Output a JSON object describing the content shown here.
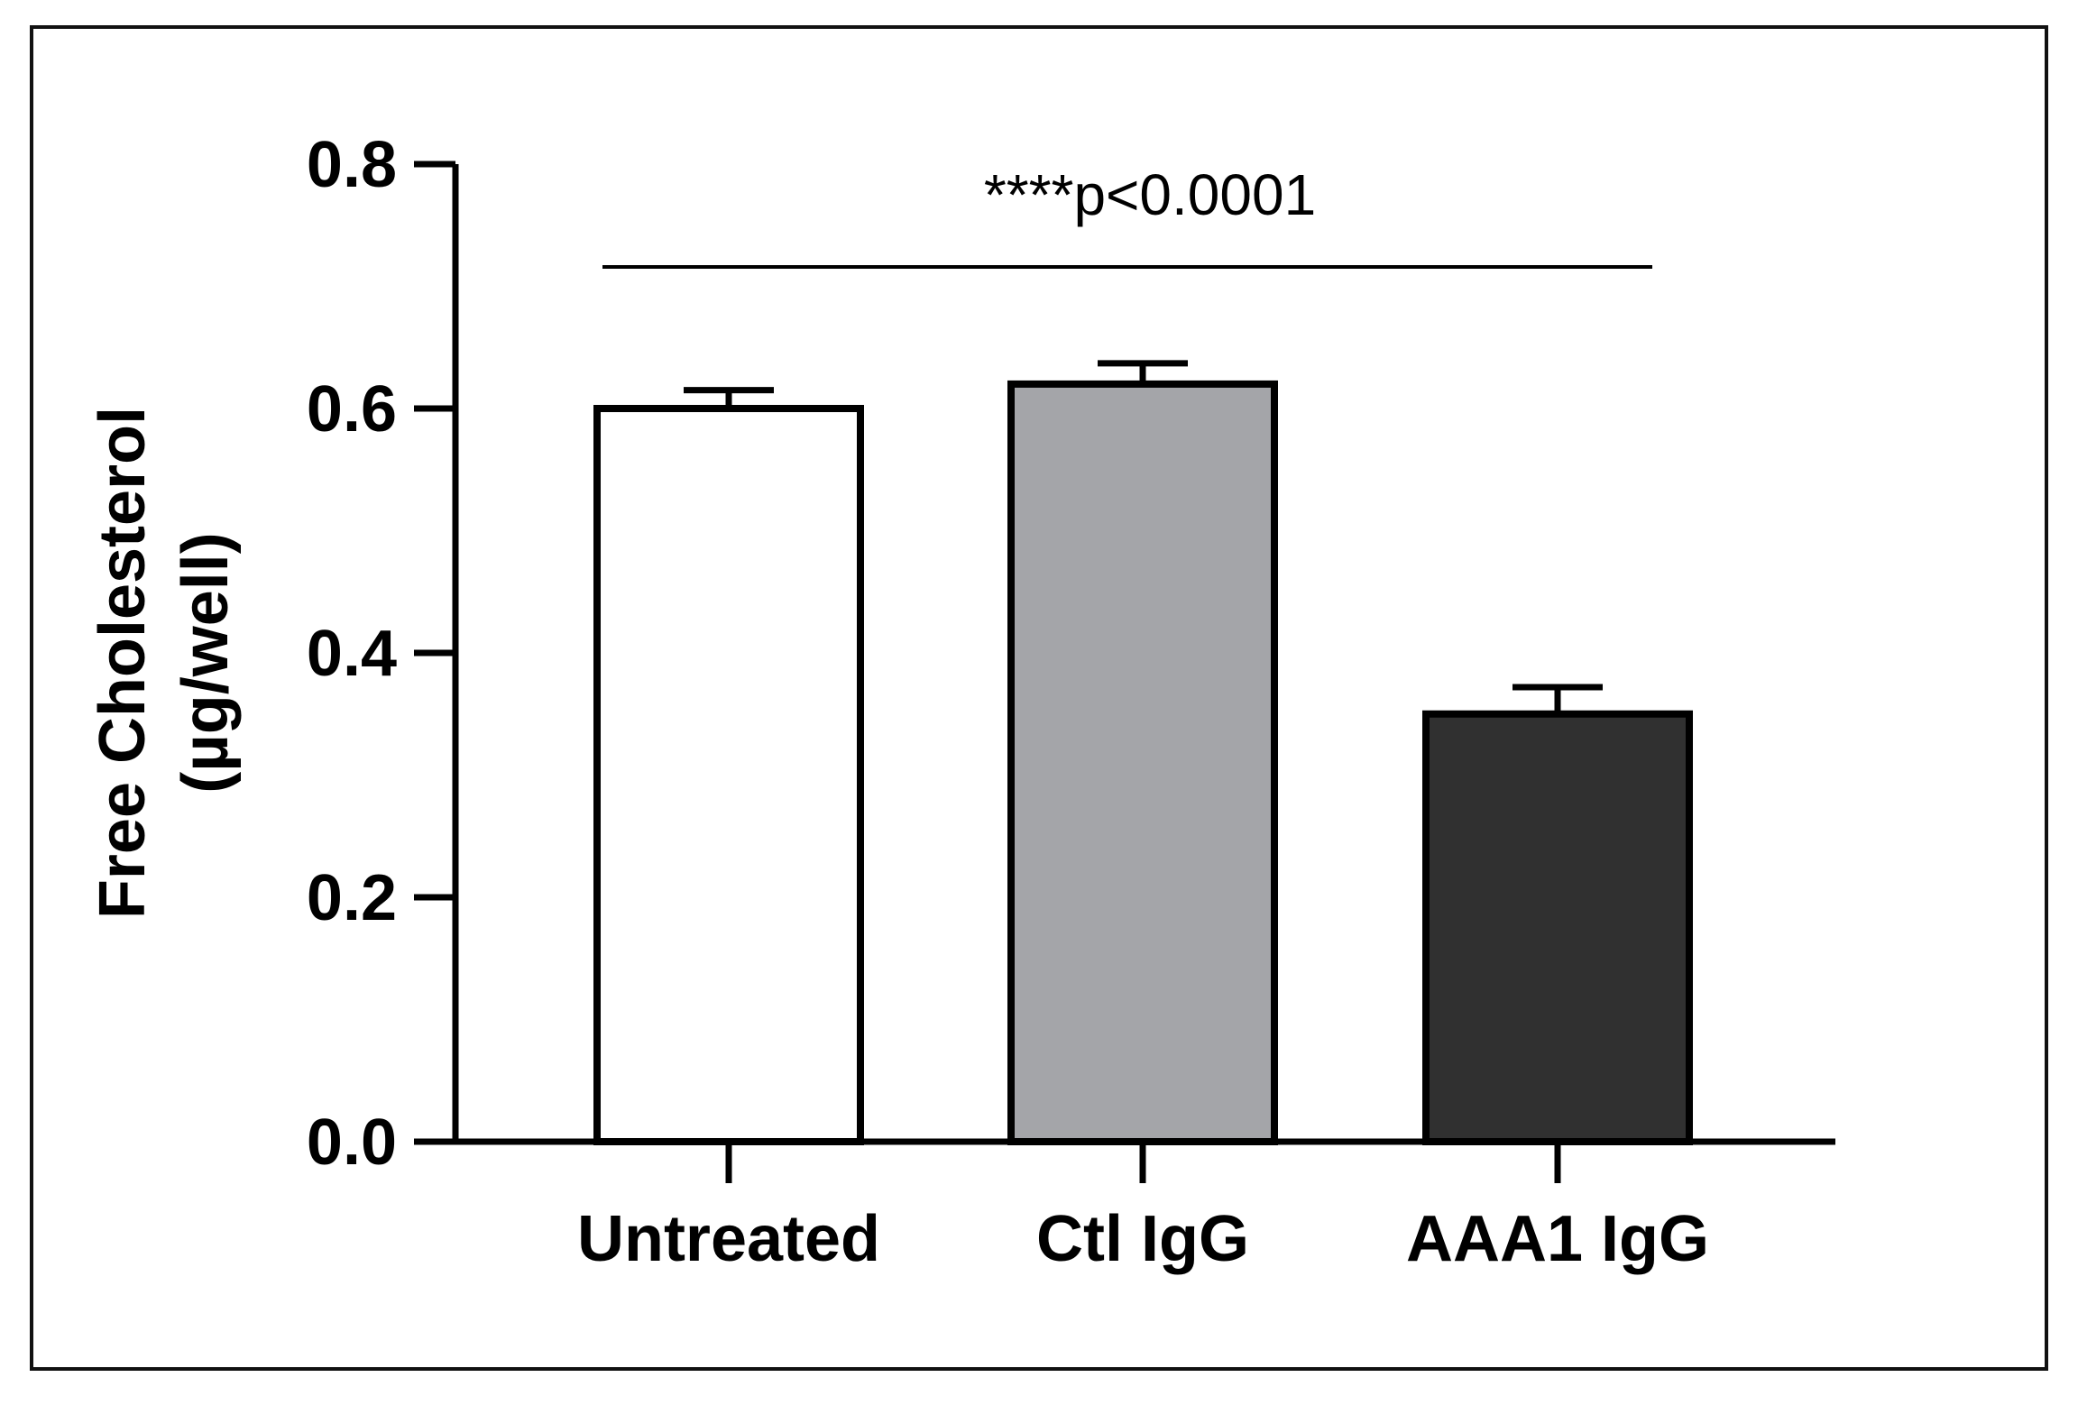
{
  "chart_data": {
    "type": "bar",
    "categories": [
      "Untreated",
      "Ctl IgG",
      "AAA1 IgG"
    ],
    "series": [
      {
        "name": "Free Cholesterol",
        "values": [
          0.6,
          0.62,
          0.35
        ],
        "errors": [
          0.015,
          0.017,
          0.022
        ]
      }
    ],
    "bar_colors": [
      "#ffffff",
      "#a4a5a9",
      "#303030"
    ],
    "ylabel_line1": "Free Cholesterol",
    "ylabel_line2": "(µg/well)",
    "xlabel": "",
    "ylim": [
      0,
      0.8
    ],
    "yticks": [
      0.0,
      0.2,
      0.4,
      0.6,
      0.8
    ],
    "ytick_labels": [
      "0.0",
      "0.2",
      "0.4",
      "0.6",
      "0.8"
    ],
    "annotation": "****p<0.0001",
    "grid": false,
    "legend": "none"
  }
}
